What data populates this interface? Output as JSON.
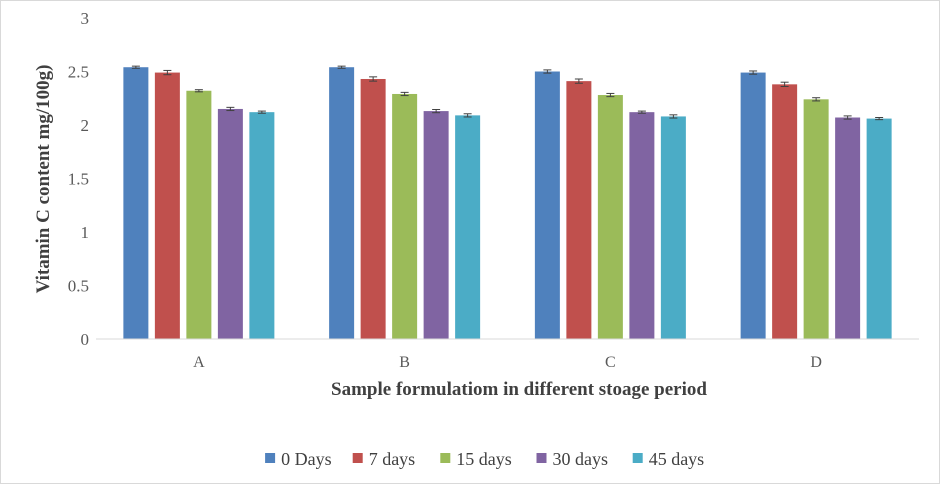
{
  "chart_data": {
    "type": "bar",
    "categories": [
      "A",
      "B",
      "C",
      "D"
    ],
    "xlabel": "Sample formulatiom in different stoage period",
    "ylabel": "Vitamin C content mg/100g)",
    "ylim": [
      0,
      3
    ],
    "yticks": [
      "0",
      "0.5",
      "1",
      "1.5",
      "2",
      "2.5",
      "3"
    ],
    "grid": false,
    "legend_position": "bottom",
    "series": [
      {
        "name": "0 Days",
        "color": "#4f81bd",
        "values": [
          2.54,
          2.54,
          2.5,
          2.49
        ],
        "errors": [
          0.01,
          0.01,
          0.015,
          0.015
        ]
      },
      {
        "name": "7 days",
        "color": "#c0504d",
        "values": [
          2.49,
          2.43,
          2.41,
          2.38
        ],
        "errors": [
          0.02,
          0.02,
          0.02,
          0.02
        ]
      },
      {
        "name": "15 days",
        "color": "#9bbb59",
        "values": [
          2.32,
          2.29,
          2.28,
          2.24
        ],
        "errors": [
          0.01,
          0.015,
          0.015,
          0.015
        ]
      },
      {
        "name": "30 days",
        "color": "#8064a2",
        "values": [
          2.15,
          2.13,
          2.12,
          2.07
        ],
        "errors": [
          0.015,
          0.015,
          0.01,
          0.015
        ]
      },
      {
        "name": "45 days",
        "color": "#4bacc6",
        "values": [
          2.12,
          2.09,
          2.08,
          2.06
        ],
        "errors": [
          0.01,
          0.015,
          0.015,
          0.01
        ]
      }
    ]
  }
}
